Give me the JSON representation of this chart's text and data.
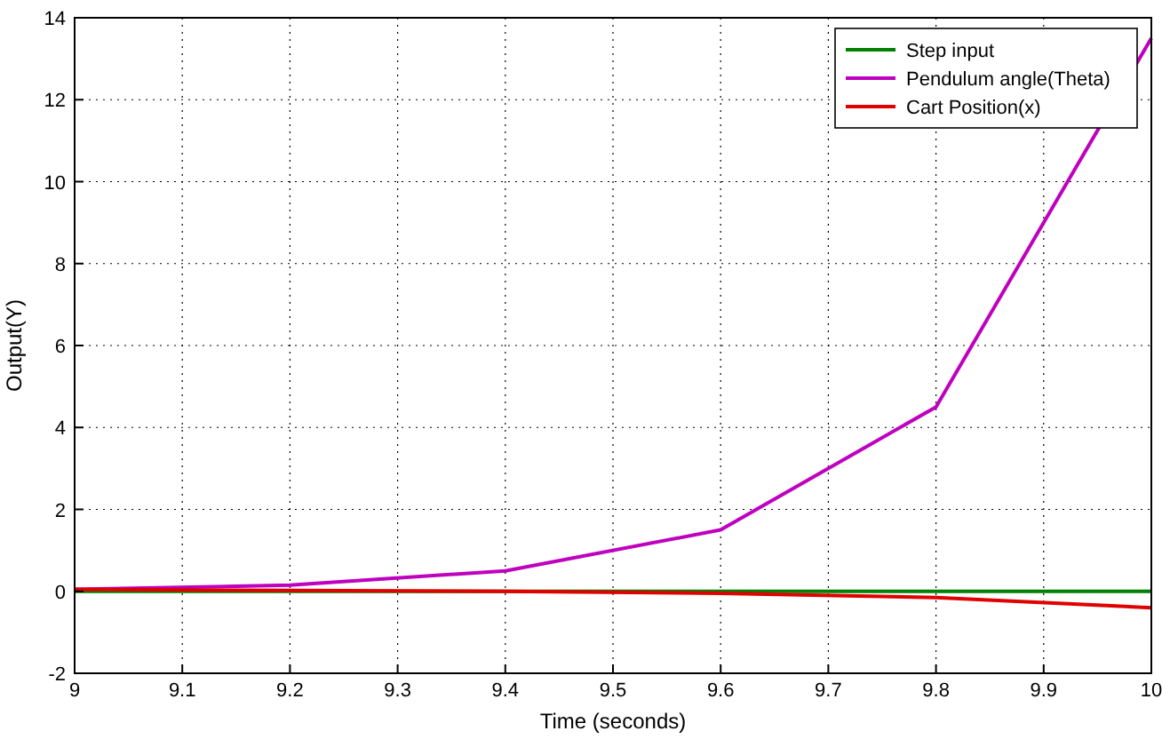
{
  "chart_data": {
    "type": "line",
    "xlabel": "Time (seconds)",
    "ylabel": "Output(Y)",
    "x": [
      9,
      9.2,
      9.4,
      9.6,
      9.8,
      10
    ],
    "series": [
      {
        "name": "Step input",
        "color": "#008000",
        "values": [
          0,
          0,
          0,
          0,
          0,
          0
        ]
      },
      {
        "name": "Pendulum angle(Theta)",
        "color": "#bf00bf",
        "values": [
          0.05,
          0.15,
          0.5,
          1.5,
          4.5,
          13.5
        ]
      },
      {
        "name": "Cart Position(x)",
        "color": "#e00000",
        "values": [
          0.05,
          0.02,
          0,
          -0.05,
          -0.15,
          -0.4
        ]
      }
    ],
    "xlim": [
      9,
      10
    ],
    "xticks": [
      9,
      9.1,
      9.2,
      9.3,
      9.4,
      9.5,
      9.6,
      9.7,
      9.8,
      9.9,
      10
    ],
    "ylim": [
      -2,
      14
    ],
    "yticks": [
      -2,
      0,
      2,
      4,
      6,
      8,
      10,
      12,
      14
    ],
    "grid": true,
    "legend": "top right",
    "line_style": "solid",
    "marker": "none"
  }
}
